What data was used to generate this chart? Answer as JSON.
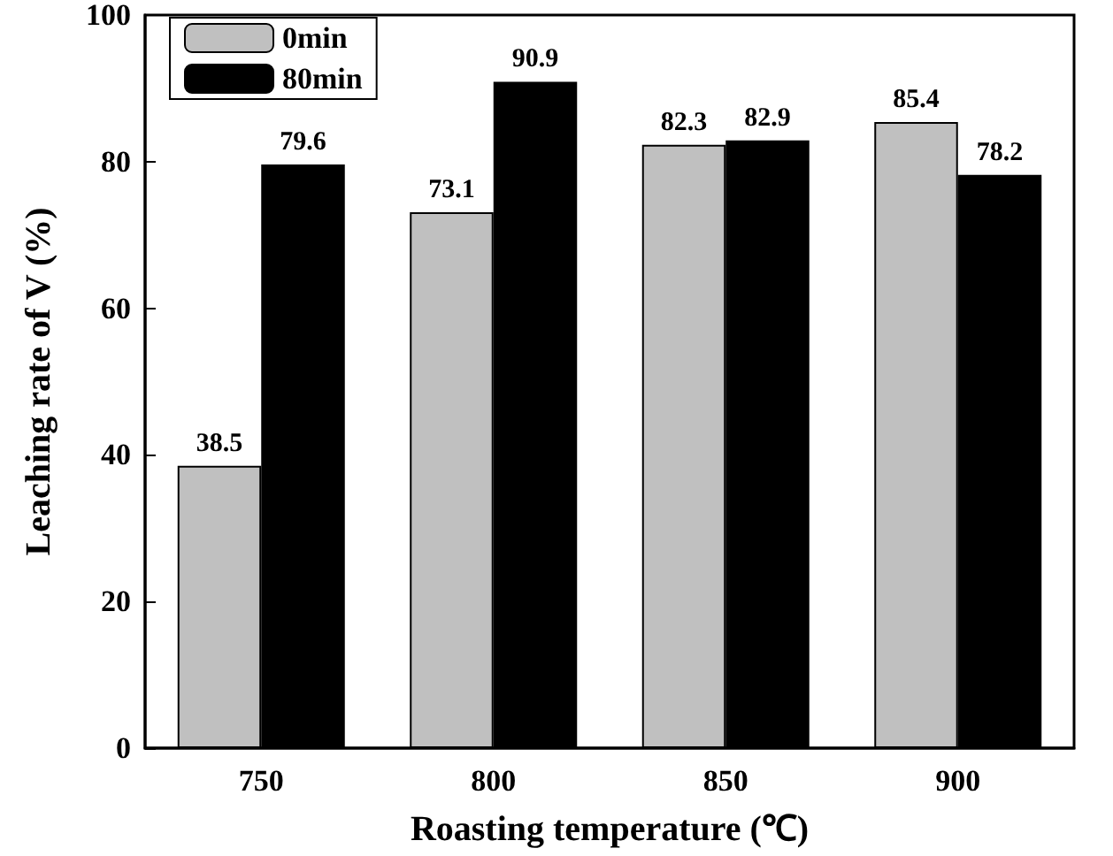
{
  "chart_data": {
    "type": "bar",
    "xlabel": "Roasting temperature (℃)",
    "ylabel": "Leaching rate of V (%)",
    "categories": [
      "750",
      "800",
      "850",
      "900"
    ],
    "series": [
      {
        "name": "0min",
        "color": "#c0c0c0",
        "values": [
          38.5,
          73.1,
          82.3,
          85.4
        ]
      },
      {
        "name": "80min",
        "color": "#000000",
        "values": [
          79.6,
          90.9,
          82.9,
          78.2
        ]
      }
    ],
    "ylim": [
      0,
      100
    ],
    "yticks": [
      0,
      20,
      40,
      60,
      80,
      100
    ],
    "data_labels": true,
    "legend": "top left",
    "grid": false
  }
}
